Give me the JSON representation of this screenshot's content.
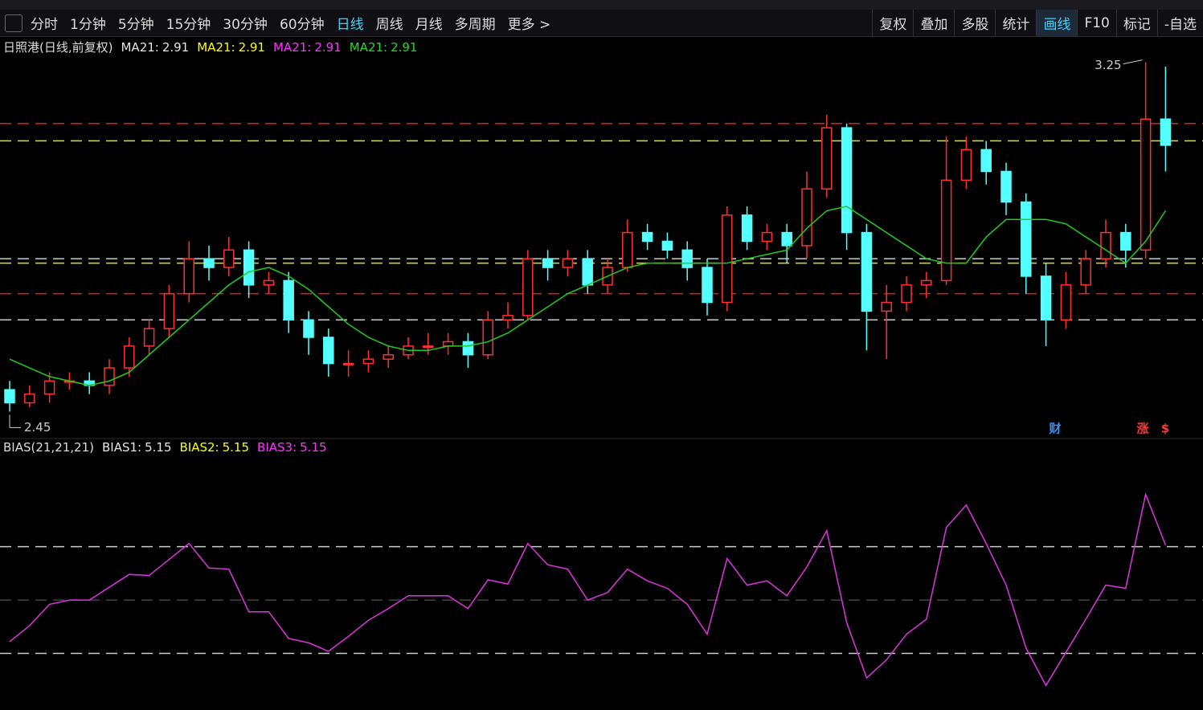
{
  "toolbar": {
    "periods": [
      "分时",
      "1分钟",
      "5分钟",
      "15分钟",
      "30分钟",
      "60分钟",
      "日线",
      "周线",
      "月线",
      "多周期",
      "更多 >"
    ],
    "active_period_index": 6,
    "tools": [
      "复权",
      "叠加",
      "多股",
      "统计",
      "画线",
      "F10",
      "标记",
      "-自选"
    ],
    "active_tool_index": 4
  },
  "badges": [
    {
      "text": "财",
      "color": "#3a8fff"
    },
    {
      "text": "涨",
      "color": "#ff3a3a"
    },
    {
      "text": "$",
      "color": "#ff3a3a"
    }
  ],
  "chart_data": [
    {
      "type": "candlestick",
      "title": "日照港(日线,前复权)",
      "legend": [
        {
          "label": "MA21:",
          "value": 2.91,
          "color": "#e6e6e6"
        },
        {
          "label": "MA21:",
          "value": 2.91,
          "color": "#ffff00"
        },
        {
          "label": "MA21:",
          "value": 2.91,
          "color": "#ff33ff"
        },
        {
          "label": "MA21:",
          "value": 2.91,
          "color": "#22dd22"
        }
      ],
      "open": [
        2.5,
        2.47,
        2.49,
        2.52,
        2.52,
        2.51,
        2.55,
        2.6,
        2.64,
        2.72,
        2.8,
        2.78,
        2.82,
        2.74,
        2.75,
        2.66,
        2.62,
        2.56,
        2.56,
        2.57,
        2.58,
        2.6,
        2.6,
        2.61,
        2.58,
        2.66,
        2.67,
        2.8,
        2.78,
        2.8,
        2.74,
        2.78,
        2.86,
        2.84,
        2.82,
        2.78,
        2.7,
        2.9,
        2.84,
        2.86,
        2.83,
        2.96,
        3.1,
        2.86,
        2.68,
        2.7,
        2.74,
        2.75,
        2.98,
        3.05,
        3.0,
        2.93,
        2.76,
        2.66,
        2.74,
        2.8,
        2.86,
        2.82,
        3.12
      ],
      "high": [
        2.52,
        2.51,
        2.54,
        2.54,
        2.54,
        2.57,
        2.62,
        2.66,
        2.74,
        2.84,
        2.83,
        2.85,
        2.84,
        2.77,
        2.77,
        2.68,
        2.64,
        2.59,
        2.59,
        2.6,
        2.62,
        2.63,
        2.63,
        2.63,
        2.68,
        2.7,
        2.82,
        2.82,
        2.82,
        2.82,
        2.8,
        2.89,
        2.88,
        2.86,
        2.84,
        2.8,
        2.92,
        2.92,
        2.88,
        2.88,
        3.0,
        3.13,
        3.11,
        2.88,
        2.74,
        2.76,
        2.77,
        3.08,
        3.08,
        3.07,
        3.02,
        2.95,
        2.79,
        2.77,
        2.82,
        2.89,
        2.88,
        3.25,
        3.24
      ],
      "low": [
        2.45,
        2.46,
        2.47,
        2.5,
        2.49,
        2.49,
        2.53,
        2.58,
        2.62,
        2.7,
        2.75,
        2.76,
        2.71,
        2.72,
        2.63,
        2.58,
        2.53,
        2.53,
        2.54,
        2.55,
        2.57,
        2.58,
        2.58,
        2.55,
        2.57,
        2.64,
        2.66,
        2.75,
        2.76,
        2.72,
        2.72,
        2.77,
        2.82,
        2.8,
        2.75,
        2.67,
        2.68,
        2.82,
        2.82,
        2.79,
        2.8,
        2.94,
        2.82,
        2.59,
        2.57,
        2.68,
        2.71,
        2.74,
        2.96,
        2.97,
        2.9,
        2.72,
        2.6,
        2.64,
        2.72,
        2.78,
        2.78,
        2.8,
        3.0
      ],
      "close": [
        2.47,
        2.49,
        2.52,
        2.52,
        2.51,
        2.55,
        2.6,
        2.64,
        2.72,
        2.8,
        2.78,
        2.82,
        2.74,
        2.75,
        2.66,
        2.62,
        2.56,
        2.56,
        2.57,
        2.58,
        2.6,
        2.6,
        2.61,
        2.58,
        2.66,
        2.67,
        2.8,
        2.78,
        2.8,
        2.74,
        2.78,
        2.86,
        2.84,
        2.82,
        2.78,
        2.7,
        2.9,
        2.84,
        2.86,
        2.83,
        2.96,
        3.1,
        2.86,
        2.68,
        2.7,
        2.74,
        2.75,
        2.98,
        3.05,
        3.0,
        2.93,
        2.76,
        2.66,
        2.74,
        2.8,
        2.86,
        2.82,
        3.12,
        3.06
      ],
      "ma": [
        2.57,
        2.55,
        2.53,
        2.52,
        2.51,
        2.52,
        2.54,
        2.58,
        2.62,
        2.66,
        2.7,
        2.74,
        2.77,
        2.78,
        2.76,
        2.73,
        2.69,
        2.65,
        2.62,
        2.6,
        2.59,
        2.59,
        2.6,
        2.6,
        2.61,
        2.63,
        2.66,
        2.69,
        2.72,
        2.74,
        2.76,
        2.78,
        2.79,
        2.79,
        2.79,
        2.79,
        2.79,
        2.8,
        2.81,
        2.82,
        2.87,
        2.91,
        2.92,
        2.89,
        2.86,
        2.83,
        2.8,
        2.79,
        2.79,
        2.85,
        2.89,
        2.89,
        2.89,
        2.88,
        2.85,
        2.82,
        2.79,
        2.84,
        2.91
      ],
      "ma_color": "#22cc22",
      "up_color": "#ff3030",
      "down_color": "#54ffff",
      "ylim": [
        2.39,
        3.31
      ],
      "hlines": [
        3.11,
        3.07,
        2.8,
        2.79,
        2.72,
        2.66
      ],
      "hline_colors": [
        "#e02020",
        "#e6e600",
        "#cccccc",
        "#e6e600",
        "#e02020",
        "#cccccc"
      ]
    },
    {
      "type": "line",
      "title": "BIAS(21,21,21)",
      "legend": [
        {
          "label": "BIAS1:",
          "value": 5.15,
          "color": "#e6e6e6"
        },
        {
          "label": "BIAS2:",
          "value": 5.15,
          "color": "#ffff00"
        },
        {
          "label": "BIAS3:",
          "value": 5.15,
          "color": "#ff33ff"
        }
      ],
      "values": [
        -3.9,
        -2.4,
        -0.4,
        0,
        0,
        1.2,
        2.4,
        2.3,
        3.8,
        5.3,
        3.0,
        2.9,
        -1.1,
        -1.1,
        -3.6,
        -4.0,
        -4.8,
        -3.4,
        -1.9,
        -0.8,
        0.4,
        0.4,
        0.4,
        -0.8,
        1.9,
        1.5,
        5.3,
        3.3,
        2.9,
        0,
        0.7,
        2.9,
        1.8,
        1.1,
        -0.4,
        -3.2,
        3.9,
        1.4,
        1.8,
        0.4,
        3.1,
        6.5,
        -2.1,
        -7.3,
        -5.6,
        -3.2,
        -1.8,
        6.8,
        8.9,
        5.3,
        1.4,
        -4.5,
        -8.0,
        -4.9,
        -1.8,
        1.4,
        1.1,
        9.9,
        5.15
      ],
      "color": "#e033e0",
      "ylim": [
        -10.3,
        13.7
      ],
      "hlines": [
        5,
        0,
        -5
      ],
      "hline_colors": [
        "#cccccc",
        "#444444",
        "#cccccc"
      ]
    }
  ]
}
